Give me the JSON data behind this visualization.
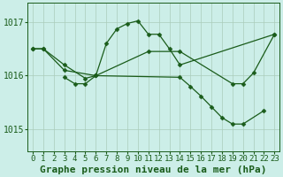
{
  "title": "Graphe pression niveau de la mer (hPa)",
  "background_color": "#cceee8",
  "grid_color": "#aaccbb",
  "line_color": "#1a5c1a",
  "xlim": [
    -0.5,
    23.5
  ],
  "ylim": [
    1014.6,
    1017.35
  ],
  "yticks": [
    1015,
    1016,
    1017
  ],
  "tick_fontsize": 6.5,
  "title_fontsize": 8,
  "s1_x": [
    0,
    1,
    3,
    5,
    6,
    7,
    8,
    9,
    10,
    11,
    12,
    13,
    14,
    23
  ],
  "s1_y": [
    1016.5,
    1016.5,
    1016.2,
    1015.95,
    1016.0,
    1016.6,
    1016.87,
    1016.97,
    1017.02,
    1016.77,
    1016.77,
    1016.5,
    1016.2,
    1016.77
  ],
  "s2_x": [
    3,
    4,
    5,
    6,
    14,
    15,
    16,
    17,
    18,
    19,
    20,
    22
  ],
  "s2_y": [
    1015.97,
    1015.85,
    1015.85,
    1016.0,
    1015.97,
    1015.8,
    1015.62,
    1015.42,
    1015.22,
    1015.1,
    1015.1,
    1015.35
  ],
  "s3_x": [
    0,
    1,
    3,
    6,
    11,
    14,
    19,
    20,
    21,
    23
  ],
  "s3_y": [
    1016.5,
    1016.5,
    1016.1,
    1016.0,
    1016.45,
    1016.45,
    1015.85,
    1015.85,
    1016.05,
    1016.77
  ],
  "marker": "D",
  "markersize": 2.5,
  "linewidth": 0.9
}
